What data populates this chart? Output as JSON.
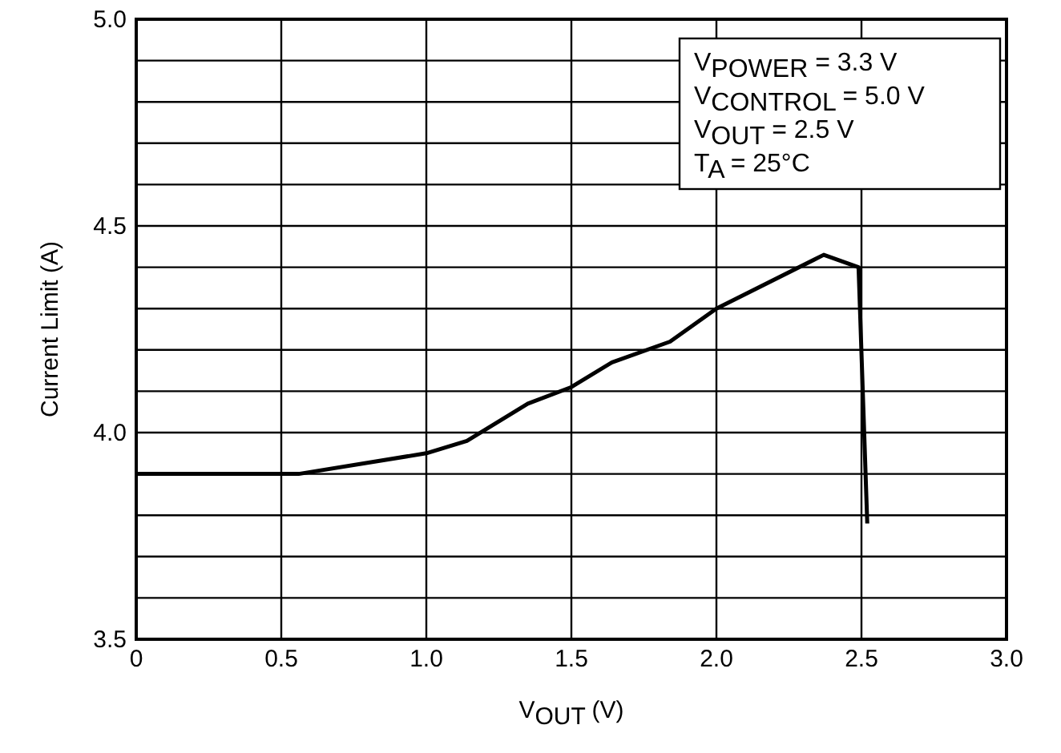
{
  "chart_data": {
    "type": "line",
    "xlabel": "V$_{OUT}$ (V)",
    "ylabel": "Current Limit (A)",
    "annotations": [
      "V$_{POWER}$ = 3.3 V",
      "V$_{CONTROL}$ = 5.0 V",
      "V$_{OUT}$ = 2.5 V",
      "T$_{A}$ = 25°C"
    ],
    "x": [
      0,
      0.56,
      1.0,
      1.14,
      1.35,
      1.5,
      1.64,
      1.84,
      2.0,
      2.37,
      2.49,
      2.52
    ],
    "series": [
      {
        "color": "#000000",
        "values": [
          3.9,
          3.9,
          3.95,
          3.98,
          4.07,
          4.11,
          4.17,
          4.22,
          4.3,
          4.43,
          4.4,
          3.78
        ]
      }
    ],
    "xlim": [
      0,
      3
    ],
    "xticks": [
      0,
      {
        "value": 0.5,
        "label": "0.5"
      },
      {
        "value": 1,
        "label": "1.0"
      },
      {
        "value": 1.5,
        "label": "1.5"
      },
      {
        "value": 2,
        "label": "2.0"
      },
      {
        "value": 2.5,
        "label": "2.5"
      },
      {
        "value": 3,
        "label": "3.0"
      }
    ],
    "ylim": [
      3.5,
      5
    ],
    "yticks": [
      {
        "value": 3.5,
        "label": "3.5"
      },
      {
        "value": 3.6,
        "label": null
      },
      {
        "value": 3.7,
        "label": null
      },
      {
        "value": 3.8,
        "label": null
      },
      {
        "value": 3.9,
        "label": null
      },
      {
        "value": 4,
        "label": "4.0"
      },
      {
        "value": 4.1,
        "label": null
      },
      {
        "value": 4.2,
        "label": null
      },
      {
        "value": 4.3,
        "label": null
      },
      {
        "value": 4.4,
        "label": null
      },
      {
        "value": 4.5,
        "label": "4.5"
      },
      {
        "value": 4.6,
        "label": null
      },
      {
        "value": 4.7,
        "label": null
      },
      {
        "value": 4.8,
        "label": null
      },
      {
        "value": 4.9,
        "label": null
      },
      {
        "value": 5,
        "label": "5.0"
      }
    ],
    "grid": true,
    "marker": "none",
    "line_style": "solid"
  }
}
